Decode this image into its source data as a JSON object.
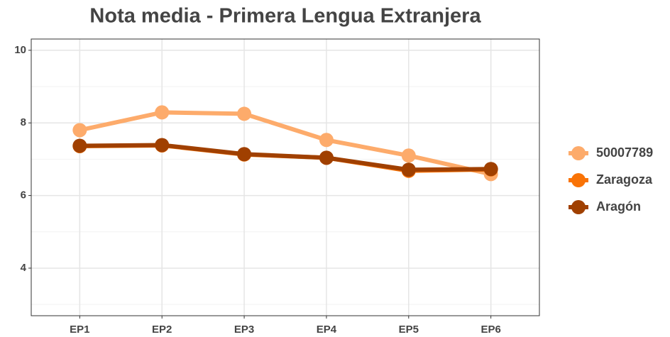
{
  "chart_data": {
    "type": "line",
    "title": "Nota media - Primera Lengua Extranjera",
    "categories": [
      "EP1",
      "EP2",
      "EP3",
      "EP4",
      "EP5",
      "EP6"
    ],
    "series": [
      {
        "name": "50007789",
        "color": "#fdab6b",
        "values": [
          7.8,
          8.29,
          8.25,
          7.53,
          7.1,
          6.59
        ]
      },
      {
        "name": "Zaragoza",
        "color": "#f97306",
        "values": [
          7.36,
          7.38,
          7.13,
          7.04,
          6.68,
          6.72
        ]
      },
      {
        "name": "Aragón",
        "color": "#a04000",
        "values": [
          7.37,
          7.39,
          7.14,
          7.04,
          6.71,
          6.73
        ]
      }
    ],
    "ylim": [
      2.69,
      10.31
    ],
    "yticks": [
      4,
      6,
      8,
      10
    ],
    "minor_yticks": [
      3,
      5,
      7,
      9
    ],
    "grid": true,
    "legend": "right"
  }
}
